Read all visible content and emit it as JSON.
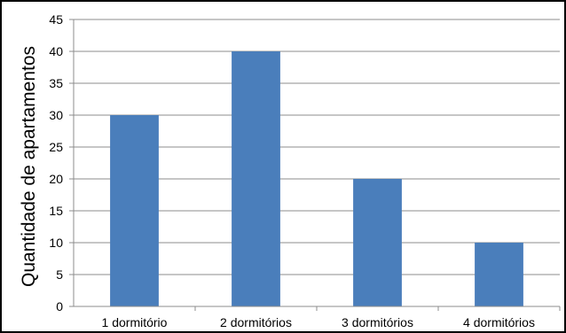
{
  "chart_data": {
    "type": "bar",
    "title": "",
    "xlabel": "",
    "ylabel": "Quantidade de apartamentos",
    "categories": [
      "1 dormitório",
      "2 dormitórios",
      "3 dormitórios",
      "4 dormitórios"
    ],
    "values": [
      30,
      40,
      20,
      10
    ],
    "ylim": [
      0,
      45
    ],
    "yticks": [
      "0",
      "5",
      "10",
      "15",
      "20",
      "25",
      "30",
      "35",
      "40",
      "45"
    ],
    "grid": true,
    "legend": "none",
    "bar_color": "#4a7ebb",
    "grid_color": "#8c8c8c"
  }
}
